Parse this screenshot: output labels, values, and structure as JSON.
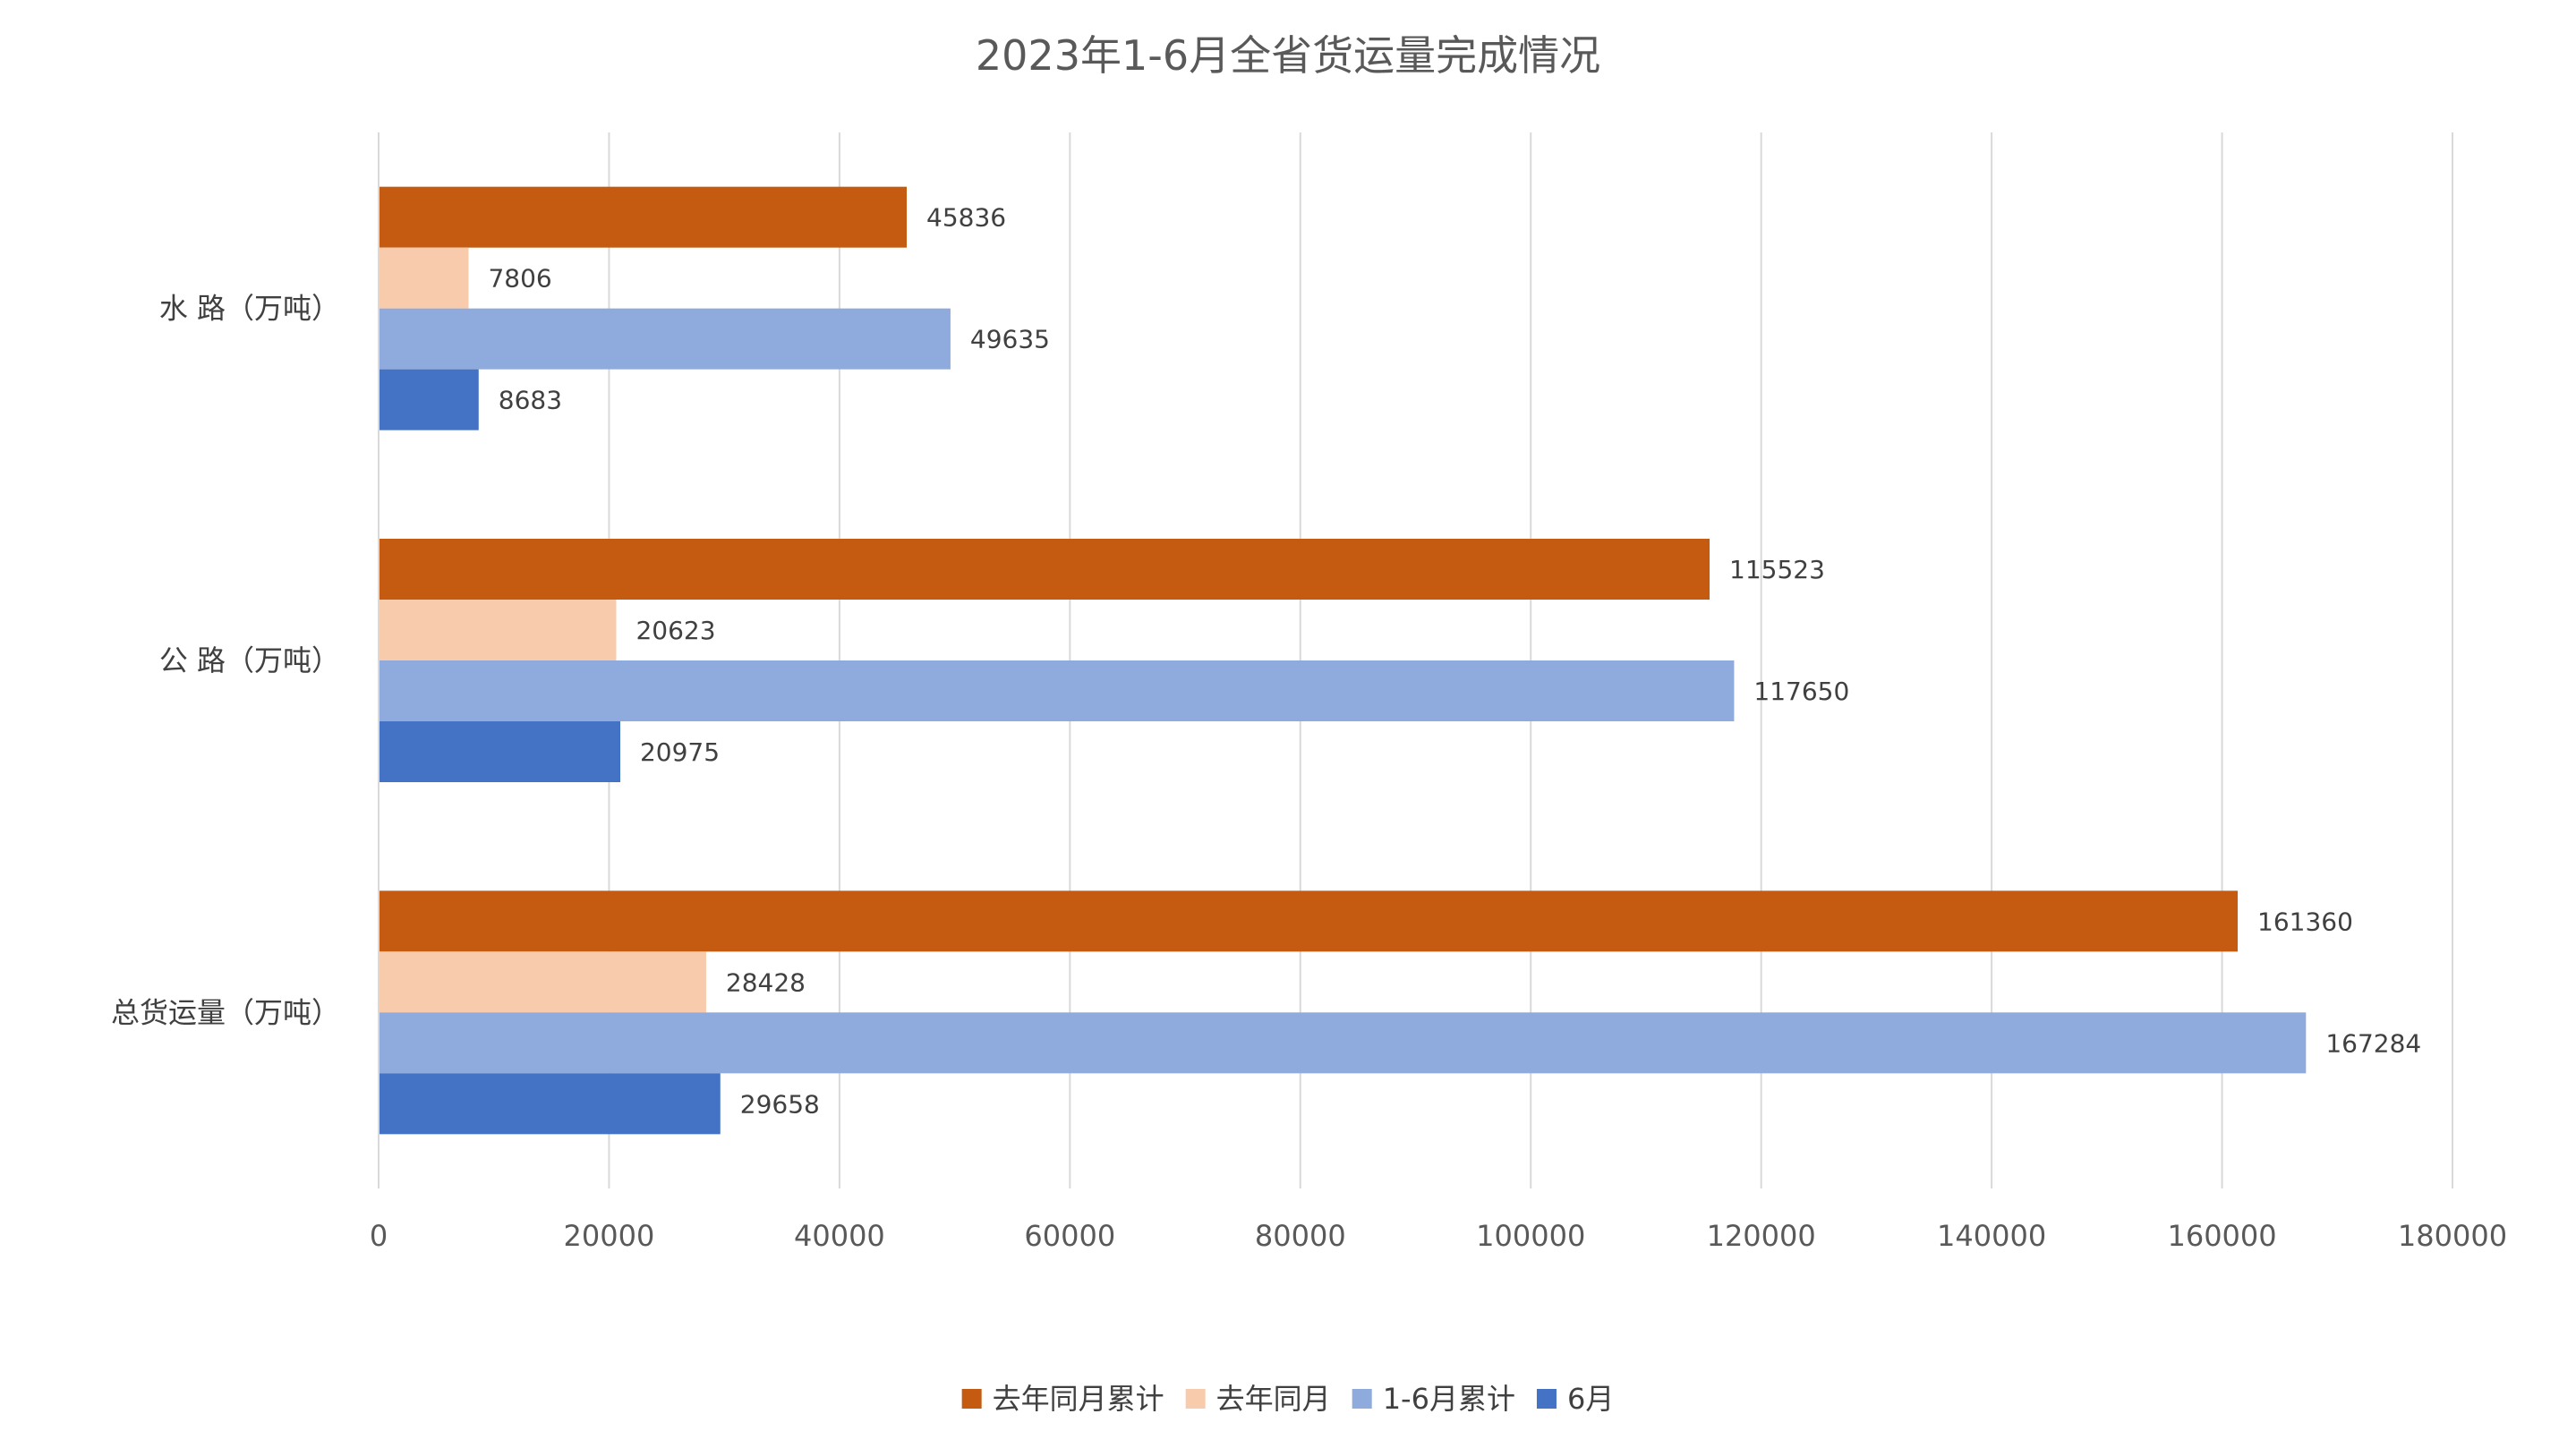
{
  "chart_data": {
    "type": "bar",
    "orientation": "horizontal",
    "title": "2023年1-6月全省货运量完成情况",
    "categories": [
      "水 路（万吨）",
      "公 路（万吨）",
      "总货运量（万吨）"
    ],
    "series": [
      {
        "name": "去年同月累计",
        "color": "#C55A11",
        "values": [
          45836,
          115523,
          161360
        ]
      },
      {
        "name": "去年同月",
        "color": "#F8CBAD",
        "values": [
          7806,
          20623,
          28428
        ]
      },
      {
        "name": "1-6月累计",
        "color": "#8FAADC",
        "values": [
          49635,
          117650,
          167284
        ]
      },
      {
        "name": "6月",
        "color": "#4472C4",
        "values": [
          8683,
          20975,
          29658
        ]
      }
    ],
    "xlim": [
      0,
      180000
    ],
    "xticks": [
      0,
      20000,
      40000,
      60000,
      80000,
      100000,
      120000,
      140000,
      160000,
      180000
    ],
    "xlabel": "",
    "ylabel": "",
    "grid": true,
    "legend_position": "bottom"
  }
}
